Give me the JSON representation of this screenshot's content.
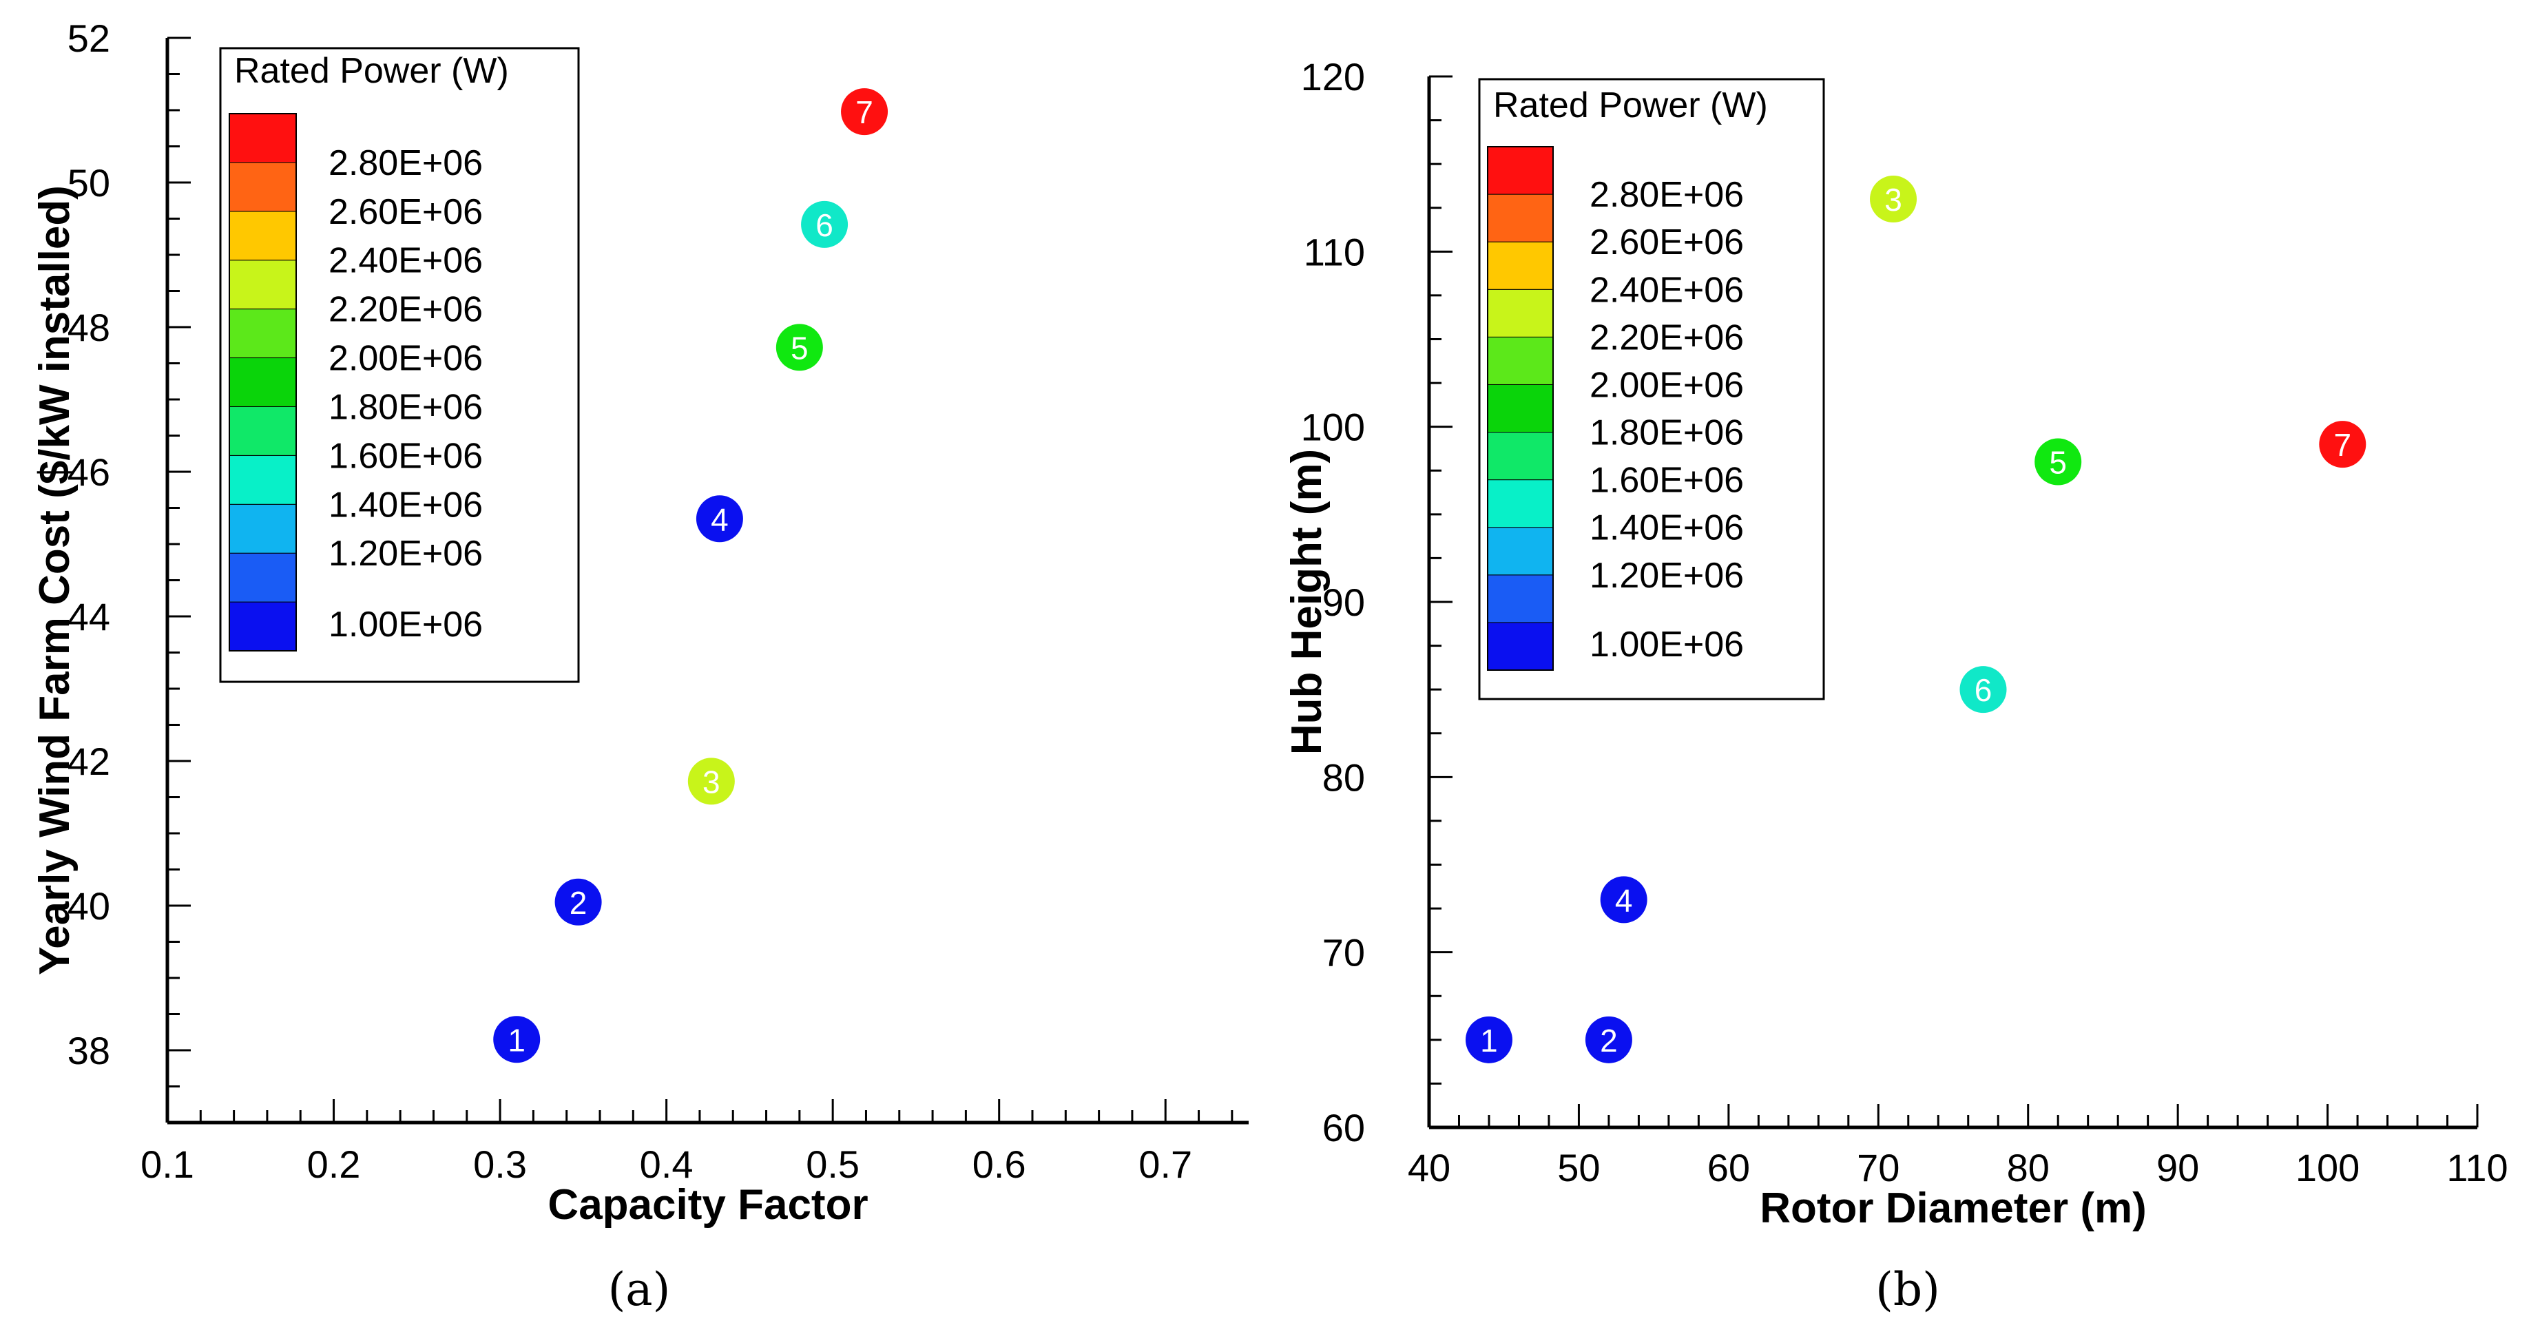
{
  "colorbar": {
    "title": "Rated Power (W)",
    "levels": [
      "1.00E+06",
      "1.20E+06",
      "1.40E+06",
      "1.60E+06",
      "1.80E+06",
      "2.00E+06",
      "2.20E+06",
      "2.40E+06",
      "2.60E+06",
      "2.80E+06"
    ],
    "colors": [
      "#0a10f0",
      "#1a5cf5",
      "#10b4f0",
      "#08f0c8",
      "#10e868",
      "#0ad40a",
      "#5ce81a",
      "#c8f41a",
      "#ffc800",
      "#ff6414",
      "#ff1010"
    ]
  },
  "chart_data": [
    {
      "type": "scatter",
      "caption": "(a)",
      "xlabel": "Capacity Factor",
      "ylabel": "Yearly Wind Farm Cost ($/kW installed)",
      "xlim": [
        0.1,
        0.75
      ],
      "ylim": [
        37,
        52
      ],
      "xticks": [
        0.1,
        0.2,
        0.3,
        0.4,
        0.5,
        0.6,
        0.7
      ],
      "xtick_labels": [
        "0.1",
        "0.2",
        "0.3",
        "0.4",
        "0.5",
        "0.6",
        "0.7"
      ],
      "yticks": [
        38,
        40,
        42,
        44,
        46,
        48,
        50,
        52
      ],
      "ytick_labels": [
        "38",
        "40",
        "42",
        "44",
        "46",
        "48",
        "50",
        "52"
      ],
      "points": [
        {
          "label": "1",
          "x": 0.31,
          "y": 38.15,
          "rated_power": 1000000,
          "color": "#0a10f0"
        },
        {
          "label": "2",
          "x": 0.347,
          "y": 40.05,
          "rated_power": 1000000,
          "color": "#0a10f0"
        },
        {
          "label": "3",
          "x": 0.427,
          "y": 41.72,
          "rated_power": 2400000,
          "color": "#c8f41a"
        },
        {
          "label": "4",
          "x": 0.432,
          "y": 45.35,
          "rated_power": 1000000,
          "color": "#0a10f0"
        },
        {
          "label": "5",
          "x": 0.48,
          "y": 47.72,
          "rated_power": 2000000,
          "color": "#10e810"
        },
        {
          "label": "6",
          "x": 0.495,
          "y": 49.42,
          "rated_power": 1600000,
          "color": "#10e8c8"
        },
        {
          "label": "7",
          "x": 0.519,
          "y": 50.98,
          "rated_power": 3000000,
          "color": "#ff1010"
        }
      ]
    },
    {
      "type": "scatter",
      "caption": "(b)",
      "xlabel": "Rotor Diameter (m)",
      "ylabel": "Hub Height (m)",
      "xlim": [
        40,
        110
      ],
      "ylim": [
        60,
        120
      ],
      "xticks": [
        40,
        50,
        60,
        70,
        80,
        90,
        100,
        110
      ],
      "xtick_labels": [
        "40",
        "50",
        "60",
        "70",
        "80",
        "90",
        "100",
        "110"
      ],
      "yticks": [
        60,
        70,
        80,
        90,
        100,
        110,
        120
      ],
      "ytick_labels": [
        "60",
        "70",
        "80",
        "90",
        "100",
        "110",
        "120"
      ],
      "points": [
        {
          "label": "1",
          "x": 44,
          "y": 65,
          "rated_power": 1000000,
          "color": "#0a10f0"
        },
        {
          "label": "2",
          "x": 52,
          "y": 65,
          "rated_power": 1000000,
          "color": "#0a10f0"
        },
        {
          "label": "3",
          "x": 71,
          "y": 113,
          "rated_power": 2400000,
          "color": "#c8f41a"
        },
        {
          "label": "4",
          "x": 53,
          "y": 73,
          "rated_power": 1000000,
          "color": "#0a10f0"
        },
        {
          "label": "5",
          "x": 82,
          "y": 98,
          "rated_power": 2000000,
          "color": "#10e810"
        },
        {
          "label": "6",
          "x": 77,
          "y": 85,
          "rated_power": 1600000,
          "color": "#10e8c8"
        },
        {
          "label": "7",
          "x": 101,
          "y": 99,
          "rated_power": 3000000,
          "color": "#ff1010"
        }
      ]
    }
  ]
}
